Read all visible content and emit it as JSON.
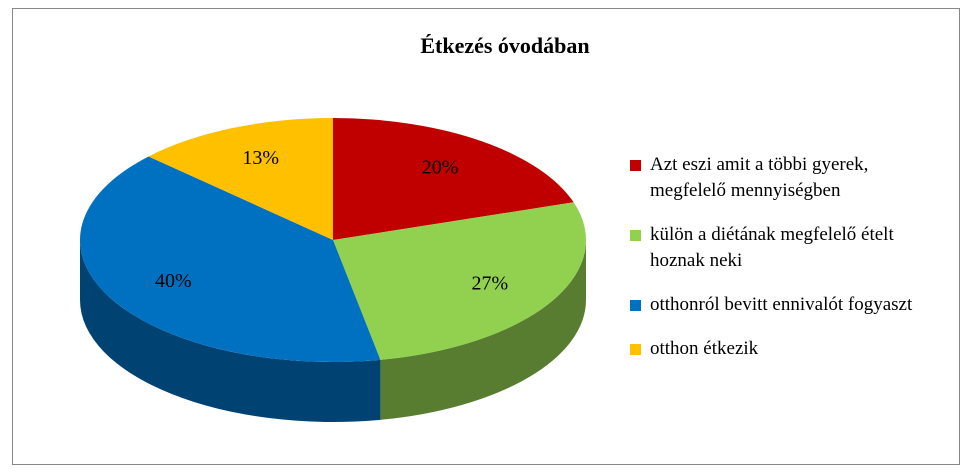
{
  "chart_data": {
    "type": "pie",
    "title": "Étkezés óvodában",
    "categories": [
      "Azt eszi amit a többi gyerek, megfelelő mennyiségben",
      "külön a diétának megfelelő ételt hoznak neki",
      "otthonról bevitt ennivalót fogyaszt",
      "otthon étkezik"
    ],
    "values": [
      20,
      27,
      40,
      13
    ],
    "value_labels": [
      "20%",
      "27%",
      "40%",
      "13%"
    ],
    "colors": [
      "#c00000",
      "#92d050",
      "#0070c0",
      "#ffc000"
    ],
    "legend": "right"
  }
}
